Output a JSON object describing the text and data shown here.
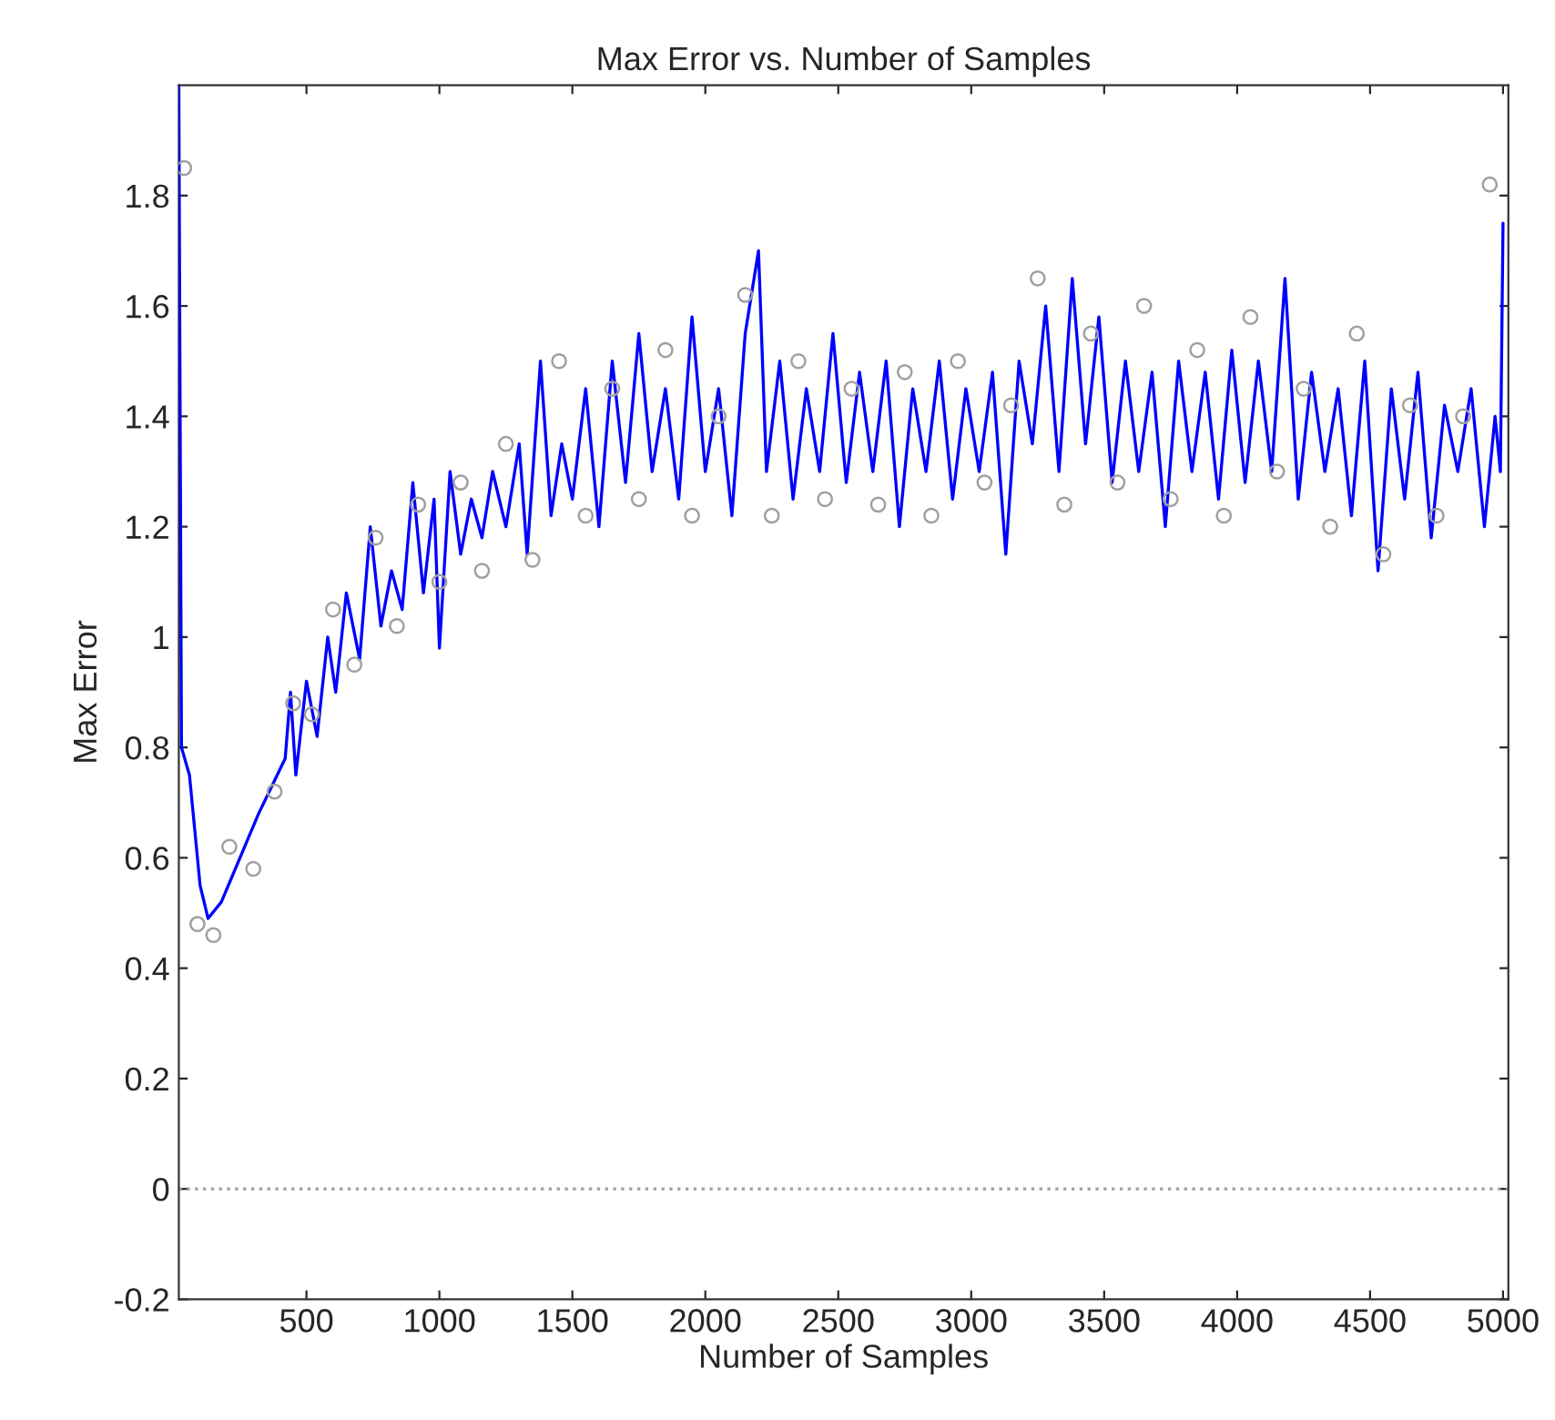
{
  "chart_data": {
    "type": "line",
    "title": "Max Error vs. Number of Samples",
    "xlabel": "Number of Samples",
    "ylabel": "Max Error",
    "xlim": [
      20,
      5020
    ],
    "ylim": [
      -0.2,
      2.0
    ],
    "xticks": [
      500,
      1000,
      1500,
      2000,
      2500,
      3000,
      3500,
      4000,
      4500,
      5000
    ],
    "yticks": [
      {
        "value": -0.2,
        "label": "-0.2"
      },
      0,
      0.2,
      0.4,
      0.6,
      0.8,
      1,
      1.2,
      1.4,
      1.6,
      1.8
    ],
    "grid": false,
    "legend": false,
    "ref_lines": [
      {
        "axis": "y",
        "value": 0,
        "color": "#a0a0a0",
        "line_style": "dotted"
      }
    ],
    "series": [
      {
        "type": "scatter",
        "marker": "circle",
        "color": "#a0a0a0",
        "x": [
          40,
          90,
          150,
          210,
          300,
          380,
          450,
          520,
          600,
          680,
          760,
          840,
          920,
          1000,
          1080,
          1160,
          1250,
          1350,
          1450,
          1550,
          1650,
          1750,
          1850,
          1950,
          2050,
          2150,
          2250,
          2350,
          2450,
          2550,
          2650,
          2750,
          2850,
          2950,
          3050,
          3150,
          3250,
          3350,
          3450,
          3550,
          3650,
          3750,
          3850,
          3950,
          4050,
          4150,
          4250,
          4350,
          4450,
          4550,
          4650,
          4750,
          4850,
          4950
        ],
        "values": [
          1.85,
          0.48,
          0.46,
          0.62,
          0.58,
          0.72,
          0.88,
          0.86,
          1.05,
          0.95,
          1.18,
          1.02,
          1.24,
          1.1,
          1.28,
          1.12,
          1.35,
          1.14,
          1.5,
          1.22,
          1.45,
          1.25,
          1.52,
          1.22,
          1.4,
          1.62,
          1.22,
          1.5,
          1.25,
          1.45,
          1.24,
          1.48,
          1.22,
          1.5,
          1.28,
          1.42,
          1.65,
          1.24,
          1.55,
          1.28,
          1.6,
          1.25,
          1.52,
          1.22,
          1.58,
          1.3,
          1.45,
          1.2,
          1.55,
          1.15,
          1.42,
          1.22,
          1.4,
          1.82
        ]
      },
      {
        "color": "#0000ff",
        "x": [
          20,
          30,
          60,
          100,
          130,
          180,
          250,
          320,
          380,
          420,
          440,
          460,
          500,
          540,
          580,
          610,
          650,
          700,
          740,
          780,
          820,
          860,
          900,
          940,
          980,
          1000,
          1040,
          1080,
          1120,
          1160,
          1200,
          1250,
          1300,
          1330,
          1380,
          1420,
          1460,
          1500,
          1550,
          1600,
          1650,
          1700,
          1750,
          1800,
          1850,
          1900,
          1950,
          2000,
          2050,
          2100,
          2150,
          2200,
          2230,
          2280,
          2330,
          2380,
          2430,
          2480,
          2530,
          2580,
          2630,
          2680,
          2730,
          2780,
          2830,
          2880,
          2930,
          2980,
          3030,
          3080,
          3130,
          3180,
          3230,
          3280,
          3330,
          3380,
          3430,
          3480,
          3530,
          3580,
          3630,
          3680,
          3730,
          3780,
          3830,
          3880,
          3930,
          3980,
          4030,
          4080,
          4130,
          4180,
          4230,
          4280,
          4330,
          4380,
          4430,
          4480,
          4530,
          4580,
          4630,
          4680,
          4730,
          4780,
          4830,
          4880,
          4930,
          4970,
          4990,
          5000
        ],
        "values": [
          2.0,
          0.8,
          0.75,
          0.55,
          0.49,
          0.52,
          0.6,
          0.68,
          0.74,
          0.78,
          0.9,
          0.75,
          0.92,
          0.82,
          1.0,
          0.9,
          1.08,
          0.96,
          1.2,
          1.02,
          1.12,
          1.05,
          1.28,
          1.08,
          1.25,
          0.98,
          1.3,
          1.15,
          1.25,
          1.18,
          1.3,
          1.2,
          1.35,
          1.15,
          1.5,
          1.22,
          1.35,
          1.25,
          1.45,
          1.2,
          1.5,
          1.28,
          1.55,
          1.3,
          1.45,
          1.25,
          1.58,
          1.3,
          1.45,
          1.22,
          1.55,
          1.7,
          1.3,
          1.5,
          1.25,
          1.45,
          1.3,
          1.55,
          1.28,
          1.48,
          1.3,
          1.5,
          1.2,
          1.45,
          1.3,
          1.5,
          1.25,
          1.45,
          1.3,
          1.48,
          1.15,
          1.5,
          1.35,
          1.6,
          1.3,
          1.65,
          1.35,
          1.58,
          1.28,
          1.5,
          1.3,
          1.48,
          1.2,
          1.5,
          1.3,
          1.48,
          1.25,
          1.52,
          1.28,
          1.5,
          1.3,
          1.65,
          1.25,
          1.48,
          1.3,
          1.45,
          1.22,
          1.5,
          1.12,
          1.45,
          1.25,
          1.48,
          1.18,
          1.42,
          1.3,
          1.45,
          1.2,
          1.4,
          1.3,
          1.75
        ]
      }
    ]
  }
}
